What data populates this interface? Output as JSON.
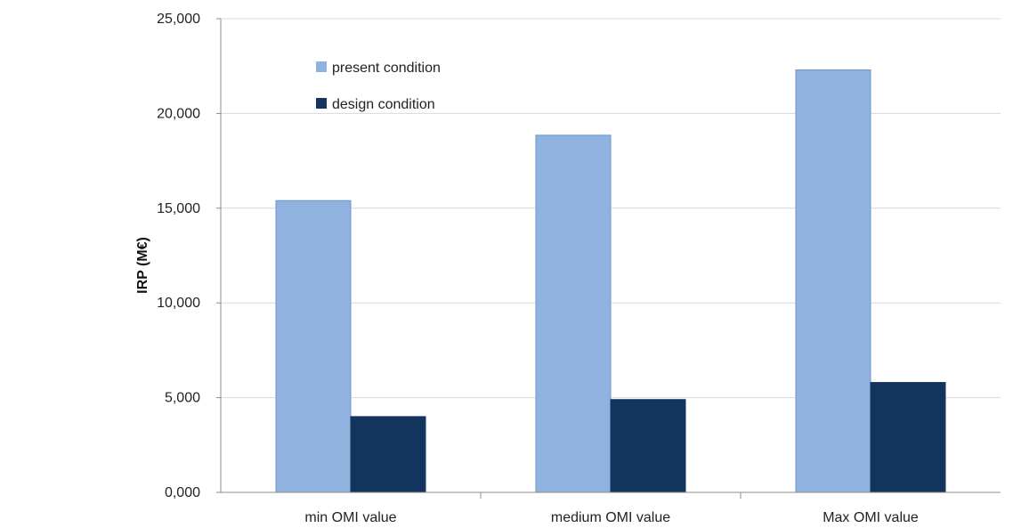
{
  "chart_data": {
    "type": "bar",
    "categories": [
      "min OMI value",
      "medium OMI value",
      "Max OMI value"
    ],
    "series": [
      {
        "name": "present condition",
        "values": [
          15.4,
          18.85,
          22.3
        ],
        "color": "#8fb2de"
      },
      {
        "name": "design condition",
        "values": [
          4.0,
          4.9,
          5.8
        ],
        "color": "#13345c"
      }
    ],
    "title": "",
    "xlabel": "",
    "ylabel": "IRP (M€)",
    "ylim": [
      0,
      25
    ],
    "yticks": [
      0,
      5,
      10,
      15,
      20,
      25
    ],
    "ytick_labels": [
      "0,000",
      "5,000",
      "10,000",
      "15,000",
      "20,000",
      "25,000"
    ],
    "grid": true,
    "legend_position": "top-left inside"
  }
}
